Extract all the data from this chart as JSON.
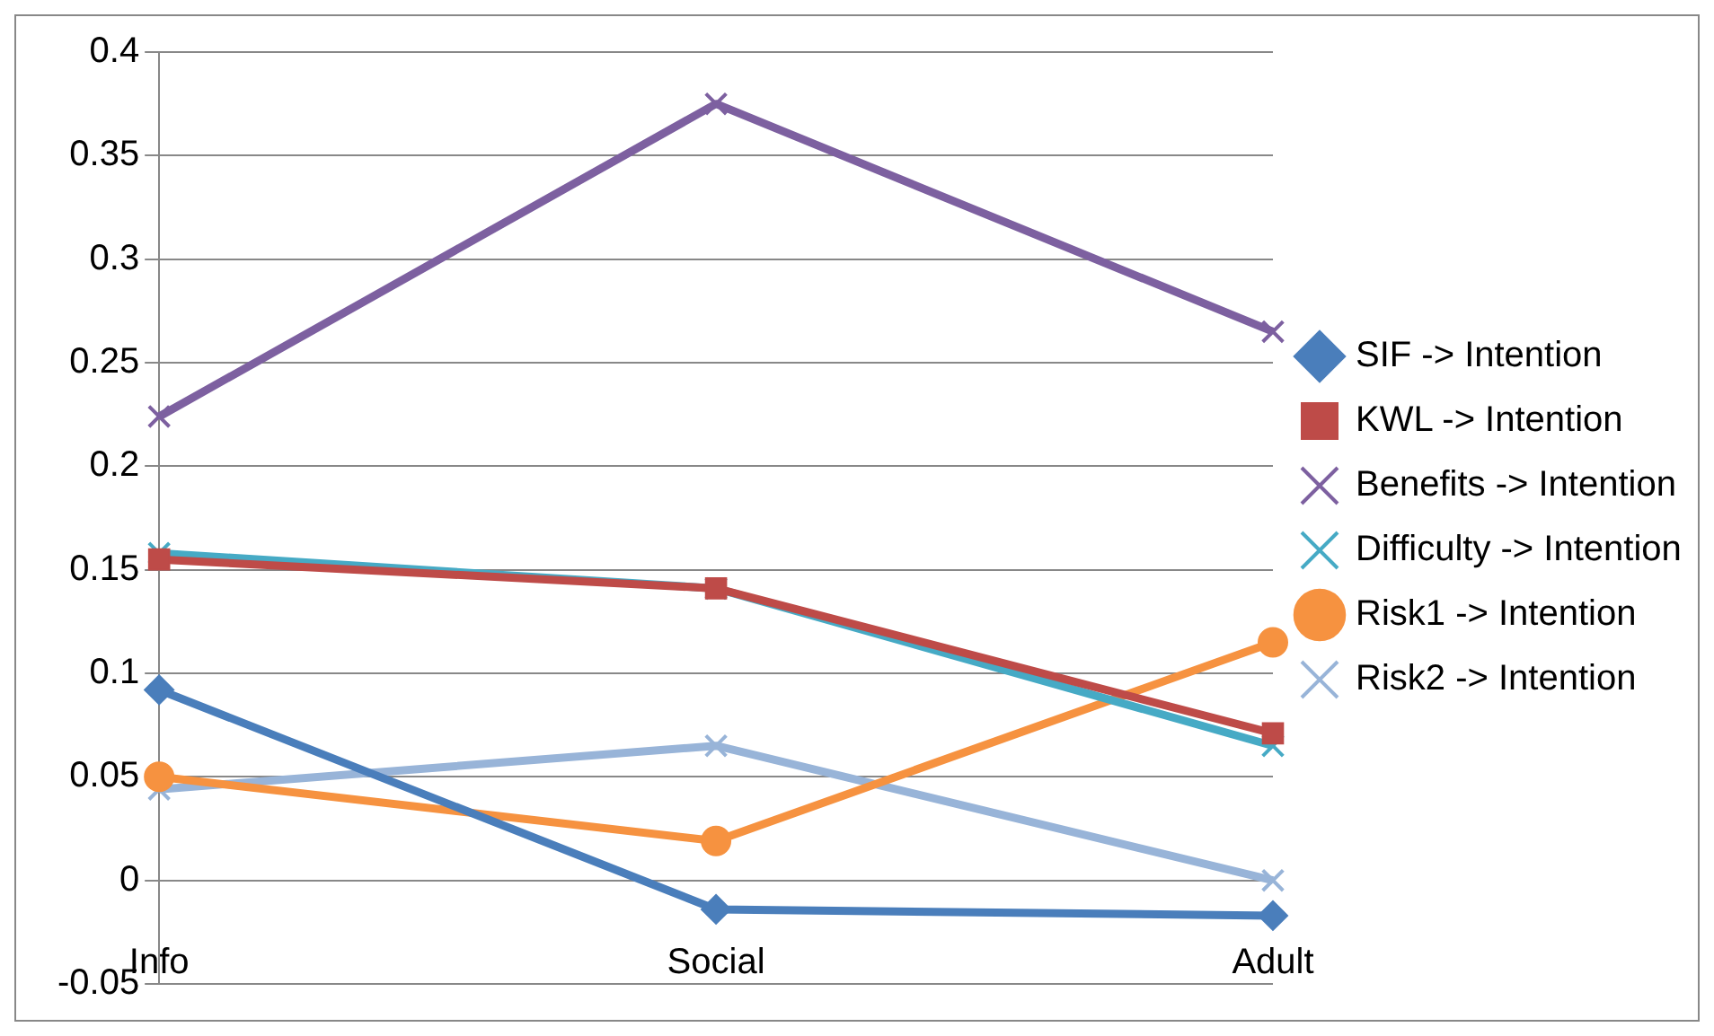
{
  "chart_data": {
    "type": "line",
    "categories": [
      "Info",
      "Social",
      "Adult"
    ],
    "series": [
      {
        "name": "SIF -> Intention",
        "color": "#4a7ebb",
        "marker": "diamond",
        "values": [
          0.092,
          -0.014,
          -0.017
        ]
      },
      {
        "name": "KWL -> Intention",
        "color": "#be4b48",
        "marker": "square",
        "values": [
          0.155,
          0.141,
          0.071
        ]
      },
      {
        "name": "Benefits -> Intention",
        "color": "#7d60a0",
        "marker": "cross",
        "values": [
          0.224,
          0.375,
          0.265
        ]
      },
      {
        "name": "Difficulty -> Intention",
        "color": "#46aac5",
        "marker": "cross",
        "values": [
          0.158,
          0.141,
          0.065
        ]
      },
      {
        "name": "Risk1 -> Intention",
        "color": "#f69240",
        "marker": "circle",
        "values": [
          0.05,
          0.019,
          0.115
        ]
      },
      {
        "name": "Risk2 -> Intention",
        "color": "#98b4d8",
        "marker": "cross",
        "values": [
          0.044,
          0.065,
          0.0
        ]
      }
    ],
    "ylim": [
      -0.05,
      0.4
    ],
    "yticks": [
      -0.05,
      0,
      0.05,
      0.1,
      0.15,
      0.2,
      0.25,
      0.3,
      0.35,
      0.4
    ],
    "grid": "y",
    "legend": "right",
    "line_style": "solid"
  }
}
